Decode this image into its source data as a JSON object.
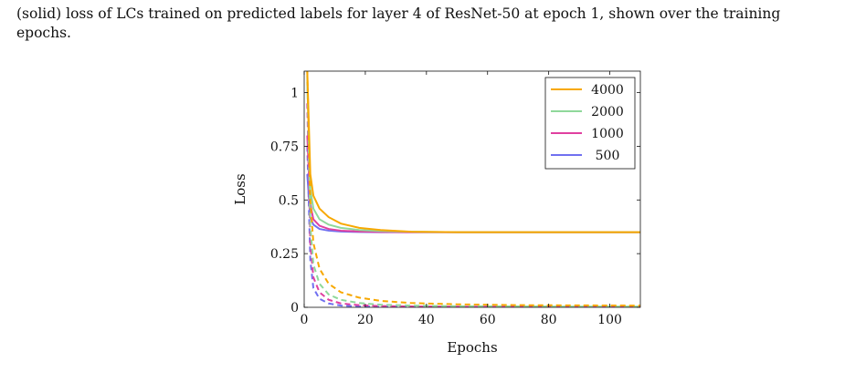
{
  "caption": {
    "line1": "(solid) loss of LCs trained on predicted labels for layer 4 of ResNet-50 at epoch 1, shown over the training",
    "line2": "epochs."
  },
  "chart_data": {
    "type": "line",
    "title": "",
    "xlabel": "Epochs",
    "ylabel": "Loss",
    "xlim": [
      0,
      110
    ],
    "ylim": [
      0,
      1.1
    ],
    "xticks": [
      "0",
      "20",
      "40",
      "60",
      "80",
      "100"
    ],
    "yticks": [
      "0",
      "0.25",
      "0.5",
      "0.75",
      "1"
    ],
    "legend_position": "top-right",
    "legend_style": "solid",
    "series": [
      {
        "name": "4000",
        "color": "#f7a800",
        "solid": {
          "x": [
            1,
            2,
            3,
            5,
            8,
            12,
            18,
            25,
            35,
            50,
            70,
            90,
            110
          ],
          "y": [
            1.1,
            0.62,
            0.52,
            0.46,
            0.42,
            0.39,
            0.37,
            0.36,
            0.352,
            0.35,
            0.35,
            0.35,
            0.35
          ]
        },
        "dashed": {
          "x": [
            1,
            2,
            3,
            5,
            8,
            12,
            18,
            25,
            35,
            50,
            70,
            90,
            110
          ],
          "y": [
            1.1,
            0.5,
            0.3,
            0.18,
            0.11,
            0.07,
            0.045,
            0.03,
            0.02,
            0.014,
            0.01,
            0.009,
            0.008
          ]
        }
      },
      {
        "name": "2000",
        "color": "#8fd89a",
        "solid": {
          "x": [
            1,
            2,
            3,
            5,
            8,
            12,
            18,
            25,
            35,
            50,
            70,
            90,
            110
          ],
          "y": [
            1.05,
            0.55,
            0.46,
            0.41,
            0.385,
            0.37,
            0.36,
            0.355,
            0.352,
            0.35,
            0.35,
            0.35,
            0.35
          ]
        },
        "dashed": {
          "x": [
            1,
            2,
            3,
            5,
            8,
            12,
            18,
            25,
            35,
            50,
            70,
            90,
            110
          ],
          "y": [
            1.08,
            0.38,
            0.2,
            0.11,
            0.06,
            0.035,
            0.02,
            0.012,
            0.008,
            0.005,
            0.004,
            0.003,
            0.003
          ]
        }
      },
      {
        "name": "1000",
        "color": "#e040a0",
        "solid": {
          "x": [
            1,
            2,
            3,
            5,
            8,
            12,
            18,
            25,
            35,
            50,
            70,
            90,
            110
          ],
          "y": [
            0.8,
            0.48,
            0.41,
            0.38,
            0.365,
            0.357,
            0.353,
            0.351,
            0.35,
            0.35,
            0.35,
            0.35,
            0.35
          ]
        },
        "dashed": {
          "x": [
            1,
            2,
            3,
            5,
            8,
            12,
            18,
            25,
            35,
            50,
            70,
            90,
            110
          ],
          "y": [
            0.95,
            0.3,
            0.14,
            0.07,
            0.035,
            0.018,
            0.01,
            0.006,
            0.004,
            0.003,
            0.002,
            0.002,
            0.002
          ]
        }
      },
      {
        "name": "500",
        "color": "#7070f0",
        "solid": {
          "x": [
            1,
            2,
            3,
            5,
            8,
            12,
            18,
            25,
            35,
            50,
            70,
            90,
            110
          ],
          "y": [
            0.62,
            0.42,
            0.385,
            0.365,
            0.357,
            0.353,
            0.351,
            0.35,
            0.35,
            0.35,
            0.35,
            0.35,
            0.35
          ]
        },
        "dashed": {
          "x": [
            1,
            2,
            3,
            5,
            8,
            12,
            18,
            25,
            35,
            50,
            70,
            90,
            110
          ],
          "y": [
            0.75,
            0.22,
            0.09,
            0.04,
            0.018,
            0.008,
            0.004,
            0.002,
            0.001,
            0.001,
            0.001,
            0.001,
            0.001
          ]
        }
      }
    ]
  }
}
